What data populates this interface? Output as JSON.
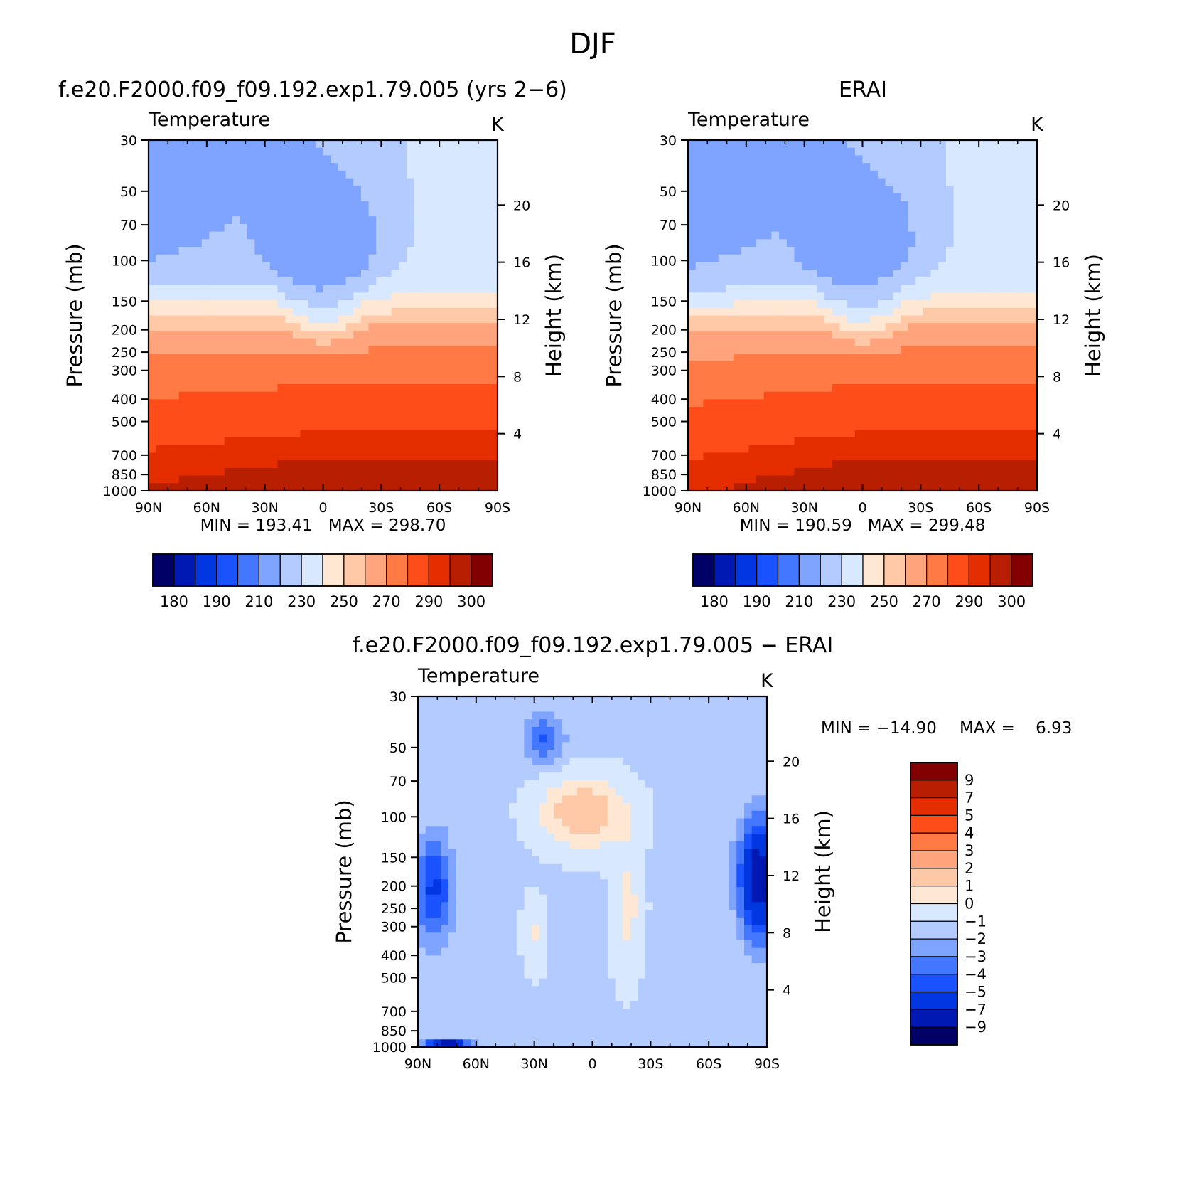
{
  "figure": {
    "title": "DJF",
    "top_left_title": "f.e20.F2000.f09_f09.192.exp1.79.005 (yrs 2−6)",
    "top_right_title": "ERAI",
    "bottom_title": "f.e20.F2000.f09_f09.192.exp1.79.005 − ERAI"
  },
  "chart_data": [
    {
      "id": "model",
      "type": "heatmap",
      "subtype": "filled-contour",
      "variable_label": "Temperature",
      "units_label": "K",
      "ylabel": "Pressure (mb)",
      "y2label": "Height (km)",
      "x_ticks": [
        "90N",
        "60N",
        "30N",
        "0",
        "30S",
        "60S",
        "90S"
      ],
      "y_ticks": [
        "30",
        "50",
        "70",
        "100",
        "150",
        "200",
        "250",
        "300",
        "400",
        "500",
        "700",
        "850",
        "1000"
      ],
      "y2_ticks": [
        "20",
        "16",
        "12",
        "8",
        "4"
      ],
      "stats": "MIN = 193.41   MAX = 298.70",
      "min": 193.41,
      "max": 298.7,
      "colorbar_labels": [
        "180",
        "190",
        "210",
        "230",
        "250",
        "270",
        "290",
        "300"
      ],
      "contour_levels": [
        180,
        185,
        190,
        200,
        210,
        220,
        230,
        240,
        250,
        260,
        270,
        280,
        290,
        295,
        300
      ],
      "colors": [
        "#010066",
        "#0019b3",
        "#0037e0",
        "#1a52ff",
        "#4477ff",
        "#7fa4ff",
        "#b3cbff",
        "#d7e8ff",
        "#ffe8d3",
        "#ffc9a8",
        "#ffa47c",
        "#ff7a44",
        "#ff4d1a",
        "#e52e00",
        "#b81e00",
        "#820000"
      ]
    },
    {
      "id": "obs",
      "type": "heatmap",
      "subtype": "filled-contour",
      "variable_label": "Temperature",
      "units_label": "K",
      "ylabel": "Pressure (mb)",
      "y2label": "Height (km)",
      "x_ticks": [
        "90N",
        "60N",
        "30N",
        "0",
        "30S",
        "60S",
        "90S"
      ],
      "y_ticks": [
        "30",
        "50",
        "70",
        "100",
        "150",
        "200",
        "250",
        "300",
        "400",
        "500",
        "700",
        "850",
        "1000"
      ],
      "y2_ticks": [
        "20",
        "16",
        "12",
        "8",
        "4"
      ],
      "stats": "MIN = 190.59   MAX = 299.48",
      "min": 190.59,
      "max": 299.48,
      "colorbar_labels": [
        "180",
        "190",
        "210",
        "230",
        "250",
        "270",
        "290",
        "300"
      ],
      "contour_levels": [
        180,
        185,
        190,
        200,
        210,
        220,
        230,
        240,
        250,
        260,
        270,
        280,
        290,
        295,
        300
      ],
      "colors": [
        "#010066",
        "#0019b3",
        "#0037e0",
        "#1a52ff",
        "#4477ff",
        "#7fa4ff",
        "#b3cbff",
        "#d7e8ff",
        "#ffe8d3",
        "#ffc9a8",
        "#ffa47c",
        "#ff7a44",
        "#ff4d1a",
        "#e52e00",
        "#b81e00",
        "#820000"
      ]
    },
    {
      "id": "diff",
      "type": "heatmap",
      "subtype": "filled-contour",
      "variable_label": "Temperature",
      "units_label": "K",
      "ylabel": "Pressure (mb)",
      "y2label": "Height (km)",
      "x_ticks": [
        "90N",
        "60N",
        "30N",
        "0",
        "30S",
        "60S",
        "90S"
      ],
      "y_ticks": [
        "30",
        "50",
        "70",
        "100",
        "150",
        "200",
        "250",
        "300",
        "400",
        "500",
        "700",
        "850",
        "1000"
      ],
      "y2_ticks": [
        "20",
        "16",
        "12",
        "8",
        "4"
      ],
      "stats_min": "MIN = −14.90",
      "stats_max": "MAX =    6.93",
      "min": -14.9,
      "max": 6.93,
      "colorbar_labels": [
        "9",
        "7",
        "5",
        "4",
        "3",
        "2",
        "1",
        "0",
        "−1",
        "−2",
        "−3",
        "−4",
        "−5",
        "−7",
        "−9"
      ],
      "contour_levels": [
        -9,
        -7,
        -5,
        -4,
        -3,
        -2,
        -1,
        0,
        1,
        2,
        3,
        4,
        5,
        7,
        9
      ],
      "colors": [
        "#010066",
        "#0019b3",
        "#0037e0",
        "#1a52ff",
        "#4477ff",
        "#7fa4ff",
        "#b3cbff",
        "#d7e8ff",
        "#ffe8d3",
        "#ffc9a8",
        "#ffa47c",
        "#ff7a44",
        "#ff4d1a",
        "#e52e00",
        "#b81e00",
        "#820000"
      ]
    }
  ]
}
